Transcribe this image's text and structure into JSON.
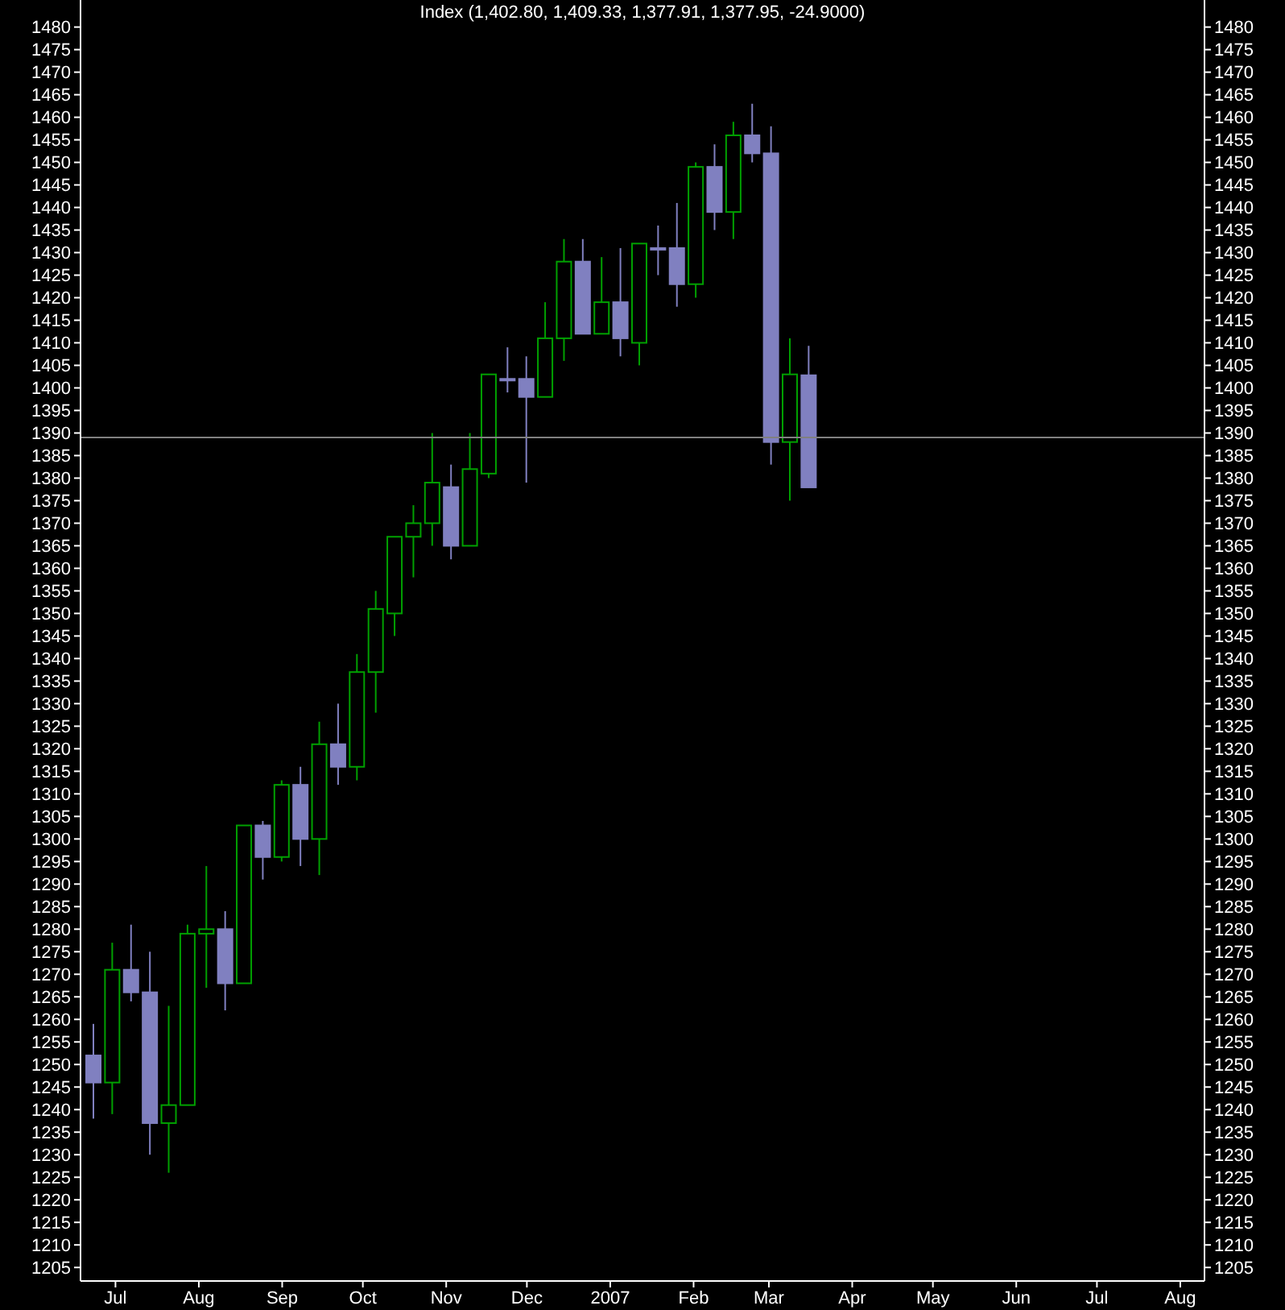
{
  "chart_data": {
    "type": "candlestick",
    "title": "Index (1,402.80, 1,409.33, 1,377.91, 1,377.95, -24.9000)",
    "x": [
      "2006-06-23",
      "2006-06-30",
      "2006-07-07",
      "2006-07-14",
      "2006-07-21",
      "2006-07-28",
      "2006-08-04",
      "2006-08-11",
      "2006-08-18",
      "2006-08-25",
      "2006-09-01",
      "2006-09-08",
      "2006-09-15",
      "2006-09-22",
      "2006-09-29",
      "2006-10-06",
      "2006-10-13",
      "2006-10-20",
      "2006-10-27",
      "2006-11-03",
      "2006-11-10",
      "2006-11-17",
      "2006-11-24",
      "2006-12-01",
      "2006-12-08",
      "2006-12-15",
      "2006-12-22",
      "2006-12-29",
      "2007-01-05",
      "2007-01-12",
      "2007-01-19",
      "2007-01-26",
      "2007-02-02",
      "2007-02-09",
      "2007-02-16",
      "2007-02-23",
      "2007-03-02",
      "2007-03-09",
      "2007-03-16"
    ],
    "ohlc": [
      [
        1252,
        1259,
        1238,
        1246
      ],
      [
        1246,
        1277,
        1239,
        1271
      ],
      [
        1271,
        1281,
        1264,
        1266
      ],
      [
        1266,
        1275,
        1230,
        1237
      ],
      [
        1237,
        1263,
        1226,
        1241
      ],
      [
        1241,
        1281,
        1241,
        1279
      ],
      [
        1279,
        1294,
        1267,
        1280
      ],
      [
        1280,
        1284,
        1262,
        1268
      ],
      [
        1268,
        1303,
        1268,
        1303
      ],
      [
        1303,
        1304,
        1291,
        1296
      ],
      [
        1296,
        1313,
        1295,
        1312
      ],
      [
        1312,
        1316,
        1294,
        1300
      ],
      [
        1300,
        1326,
        1292,
        1321
      ],
      [
        1321,
        1330,
        1312,
        1316
      ],
      [
        1316,
        1341,
        1313,
        1337
      ],
      [
        1337,
        1355,
        1328,
        1351
      ],
      [
        1350,
        1367,
        1345,
        1367
      ],
      [
        1367,
        1374,
        1358,
        1370
      ],
      [
        1370,
        1390,
        1365,
        1379
      ],
      [
        1378,
        1383,
        1362,
        1365
      ],
      [
        1365,
        1390,
        1365,
        1382
      ],
      [
        1381,
        1403,
        1380,
        1403
      ],
      [
        1402,
        1409,
        1399,
        1402
      ],
      [
        1402,
        1407,
        1379,
        1398
      ],
      [
        1398,
        1419,
        1398,
        1411
      ],
      [
        1411,
        1433,
        1406,
        1428
      ],
      [
        1428,
        1433,
        1412,
        1412
      ],
      [
        1412,
        1429,
        1412,
        1419
      ],
      [
        1419,
        1431,
        1407,
        1411
      ],
      [
        1410,
        1432,
        1405,
        1432
      ],
      [
        1431,
        1436,
        1425,
        1431
      ],
      [
        1431,
        1441,
        1418,
        1423
      ],
      [
        1423,
        1450,
        1420,
        1449
      ],
      [
        1449,
        1454,
        1435,
        1439
      ],
      [
        1439,
        1459,
        1433,
        1456
      ],
      [
        1456,
        1463,
        1450,
        1452
      ],
      [
        1452,
        1458,
        1383,
        1388
      ],
      [
        1388,
        1411,
        1375,
        1403
      ],
      [
        1402.8,
        1409.33,
        1377.91,
        1377.95
      ]
    ],
    "colors": [
      "#8080c0",
      "#00a000",
      "#8080c0",
      "#8080c0",
      "#00a000",
      "#00a000",
      "#00a000",
      "#8080c0",
      "#00a000",
      "#8080c0",
      "#00a000",
      "#8080c0",
      "#00a000",
      "#8080c0",
      "#00a000",
      "#00a000",
      "#00a000",
      "#00a000",
      "#00a000",
      "#8080c0",
      "#00a000",
      "#00a000",
      "#8080c0",
      "#8080c0",
      "#00a000",
      "#00a000",
      "#8080c0",
      "#00a000",
      "#8080c0",
      "#00a000",
      "#8080c0",
      "#8080c0",
      "#00a000",
      "#8080c0",
      "#00a000",
      "#8080c0",
      "#8080c0",
      "#00a000",
      "#8080c0"
    ],
    "xlim": [
      "2006-06-18",
      "2007-08-10"
    ],
    "xticks": [
      {
        "value": "2006-07-01",
        "label": "Jul"
      },
      {
        "value": "2006-08-01",
        "label": "Aug"
      },
      {
        "value": "2006-09-01",
        "label": "Sep"
      },
      {
        "value": "2006-10-01",
        "label": "Oct"
      },
      {
        "value": "2006-11-01",
        "label": "Nov"
      },
      {
        "value": "2006-12-01",
        "label": "Dec"
      },
      {
        "value": "2007-01-01",
        "label": "2007"
      },
      {
        "value": "2007-02-01",
        "label": "Feb"
      },
      {
        "value": "2007-03-01",
        "label": "Mar"
      },
      {
        "value": "2007-04-01",
        "label": "Apr"
      },
      {
        "value": "2007-05-01",
        "label": "May"
      },
      {
        "value": "2007-06-01",
        "label": "Jun"
      },
      {
        "value": "2007-07-01",
        "label": "Jul"
      },
      {
        "value": "2007-08-01",
        "label": "Aug"
      }
    ],
    "ylim": [
      1202,
      1486
    ],
    "yticks": [
      1205,
      1210,
      1215,
      1220,
      1225,
      1230,
      1235,
      1240,
      1245,
      1250,
      1255,
      1260,
      1265,
      1270,
      1275,
      1280,
      1285,
      1290,
      1295,
      1300,
      1305,
      1310,
      1315,
      1320,
      1325,
      1330,
      1335,
      1340,
      1345,
      1350,
      1355,
      1360,
      1365,
      1370,
      1375,
      1380,
      1385,
      1390,
      1395,
      1400,
      1405,
      1410,
      1415,
      1420,
      1425,
      1430,
      1435,
      1440,
      1445,
      1450,
      1455,
      1460,
      1465,
      1470,
      1475,
      1480
    ],
    "y2lim": [
      1202,
      1486
    ],
    "y2ticks": [
      1205,
      1210,
      1215,
      1220,
      1225,
      1230,
      1235,
      1240,
      1245,
      1250,
      1255,
      1260,
      1265,
      1270,
      1275,
      1280,
      1285,
      1290,
      1295,
      1300,
      1305,
      1310,
      1315,
      1320,
      1325,
      1330,
      1335,
      1340,
      1345,
      1350,
      1355,
      1360,
      1365,
      1370,
      1375,
      1380,
      1385,
      1390,
      1395,
      1400,
      1405,
      1410,
      1415,
      1420,
      1425,
      1430,
      1435,
      1440,
      1445,
      1450,
      1455,
      1460,
      1465,
      1470,
      1475,
      1480
    ],
    "ref_lines": [
      {
        "axis": "y",
        "value": 1389,
        "color": "#808080"
      }
    ]
  }
}
